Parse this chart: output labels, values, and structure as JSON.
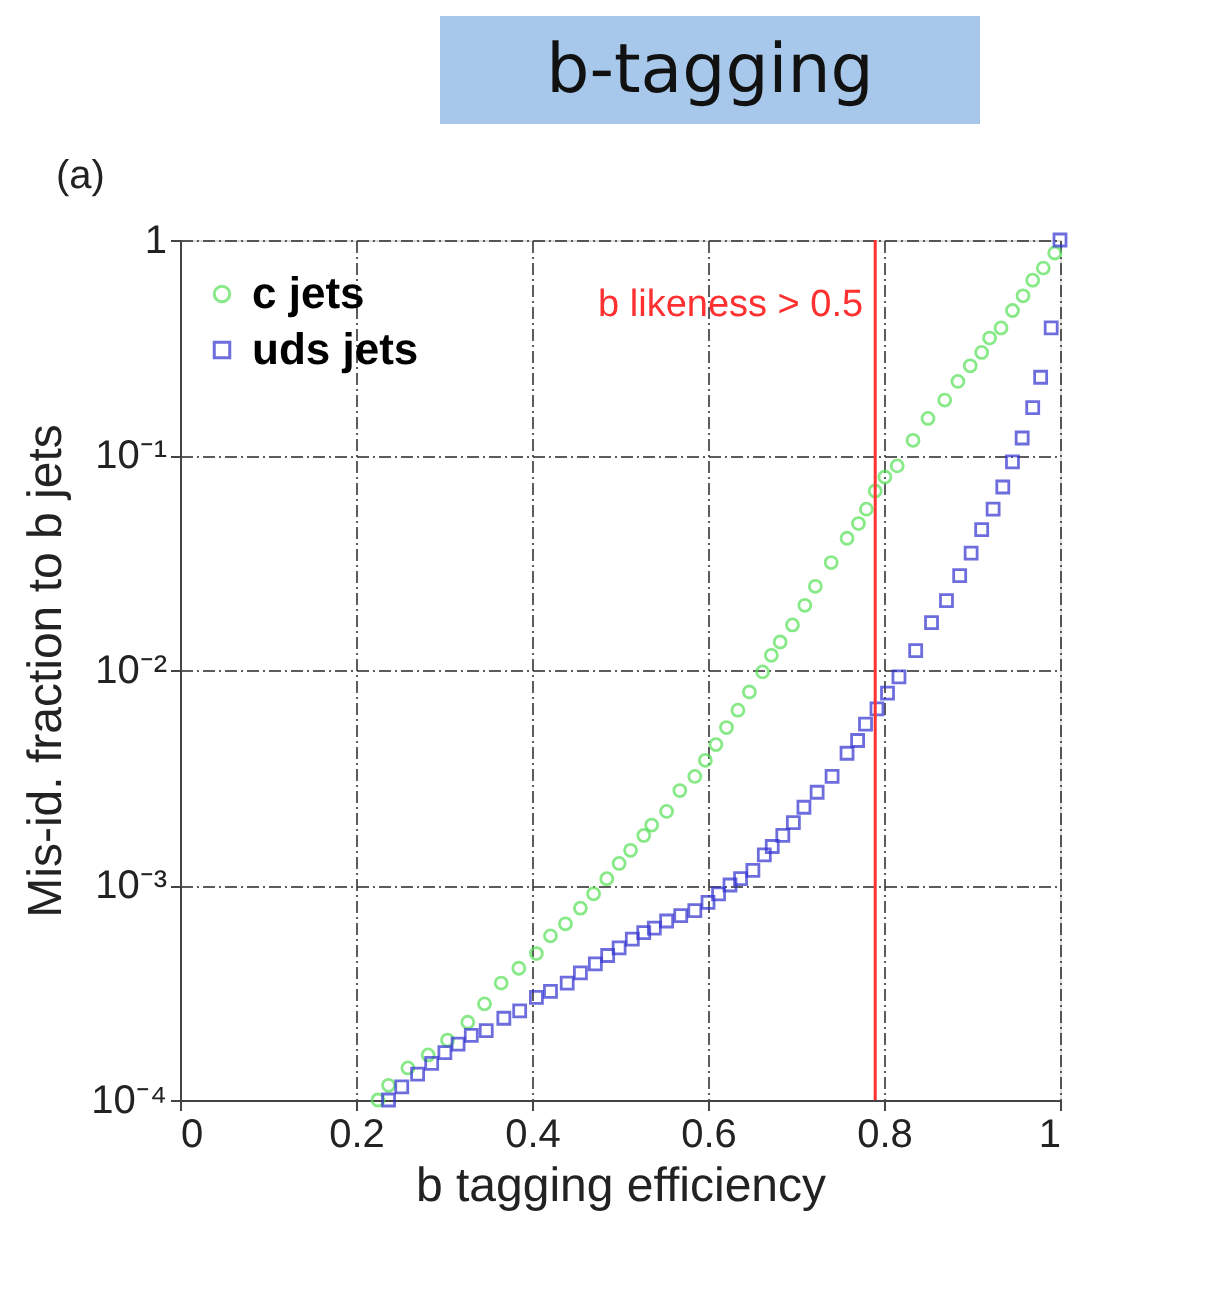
{
  "chart_data": {
    "type": "scatter",
    "title": "b-tagging",
    "xlabel": "b tagging efficiency",
    "ylabel": "Mis-id. fraction to b jets",
    "annotations": [
      "(a)"
    ],
    "log": "y",
    "grid": true,
    "legend": "top left",
    "xlim": [
      0,
      1
    ],
    "xticks": [
      0,
      0.2,
      0.4,
      0.6,
      0.8,
      1
    ],
    "ylim": [
      0.0001,
      1
    ],
    "yticks": [
      {
        "value": 0.0001,
        "label": "10⁻⁴"
      },
      {
        "value": 0.001,
        "label": "10⁻³"
      },
      {
        "value": 0.01,
        "label": "10⁻²"
      },
      {
        "value": 0.1,
        "label": "10⁻¹"
      },
      1
    ],
    "ref_lines": [
      {
        "axis": "x",
        "value": 0.79,
        "label": "b likeness > 0.5",
        "color": "#ff3030"
      }
    ],
    "series": [
      {
        "name": "c jets",
        "color": "#55e055",
        "marker": "circle",
        "x": [
          0.225,
          0.237,
          0.259,
          0.282,
          0.304,
          0.327,
          0.346,
          0.365,
          0.385,
          0.405,
          0.421,
          0.438,
          0.455,
          0.47,
          0.485,
          0.499,
          0.512,
          0.527,
          0.536,
          0.553,
          0.568,
          0.585,
          0.597,
          0.609,
          0.621,
          0.634,
          0.647,
          0.662,
          0.672,
          0.682,
          0.696,
          0.71,
          0.722,
          0.74,
          0.758,
          0.771,
          0.78,
          0.79,
          0.801,
          0.815,
          0.833,
          0.85,
          0.869,
          0.884,
          0.898,
          0.911,
          0.92,
          0.933,
          0.946,
          0.958,
          0.969,
          0.981,
          0.994
        ],
        "values": [
          0.0001,
          0.000117,
          0.000141,
          0.000162,
          0.00019,
          0.00023,
          0.00028,
          0.00035,
          0.00041,
          0.00048,
          0.00058,
          0.00066,
          0.00078,
          0.00091,
          0.00107,
          0.00126,
          0.00145,
          0.0017,
          0.0019,
          0.0022,
          0.00275,
          0.0032,
          0.0038,
          0.0045,
          0.0054,
          0.0065,
          0.0079,
          0.0098,
          0.0117,
          0.0135,
          0.0162,
          0.02,
          0.0245,
          0.0316,
          0.041,
          0.048,
          0.056,
          0.068,
          0.079,
          0.089,
          0.117,
          0.148,
          0.18,
          0.22,
          0.26,
          0.3,
          0.35,
          0.39,
          0.47,
          0.55,
          0.65,
          0.74,
          0.87
        ]
      },
      {
        "name": "uds jets",
        "color": "#3030d0",
        "marker": "square",
        "x": [
          0.237,
          0.252,
          0.27,
          0.286,
          0.301,
          0.316,
          0.331,
          0.348,
          0.368,
          0.386,
          0.405,
          0.421,
          0.44,
          0.455,
          0.472,
          0.486,
          0.499,
          0.514,
          0.527,
          0.539,
          0.553,
          0.569,
          0.585,
          0.6,
          0.612,
          0.625,
          0.637,
          0.651,
          0.664,
          0.673,
          0.685,
          0.697,
          0.709,
          0.724,
          0.741,
          0.758,
          0.77,
          0.779,
          0.792,
          0.804,
          0.817,
          0.836,
          0.854,
          0.871,
          0.886,
          0.899,
          0.911,
          0.924,
          0.935,
          0.946,
          0.957,
          0.969,
          0.978,
          0.99,
          1.0
        ],
        "values": [
          0.0001,
          0.000115,
          0.000132,
          0.000148,
          0.000166,
          0.000182,
          0.0002,
          0.00021,
          0.00024,
          0.00026,
          0.0003,
          0.00032,
          0.00035,
          0.00039,
          0.00043,
          0.00047,
          0.00051,
          0.00056,
          0.0006,
          0.00063,
          0.00068,
          0.00072,
          0.00076,
          0.00083,
          0.00091,
          0.001,
          0.00107,
          0.00117,
          0.00138,
          0.00151,
          0.0017,
          0.00195,
          0.0023,
          0.0027,
          0.0032,
          0.0041,
          0.0047,
          0.0056,
          0.0066,
          0.0078,
          0.0093,
          0.0123,
          0.0166,
          0.021,
          0.0275,
          0.035,
          0.045,
          0.056,
          0.071,
          0.093,
          0.12,
          0.166,
          0.23,
          0.39,
          1.0
        ]
      }
    ]
  }
}
